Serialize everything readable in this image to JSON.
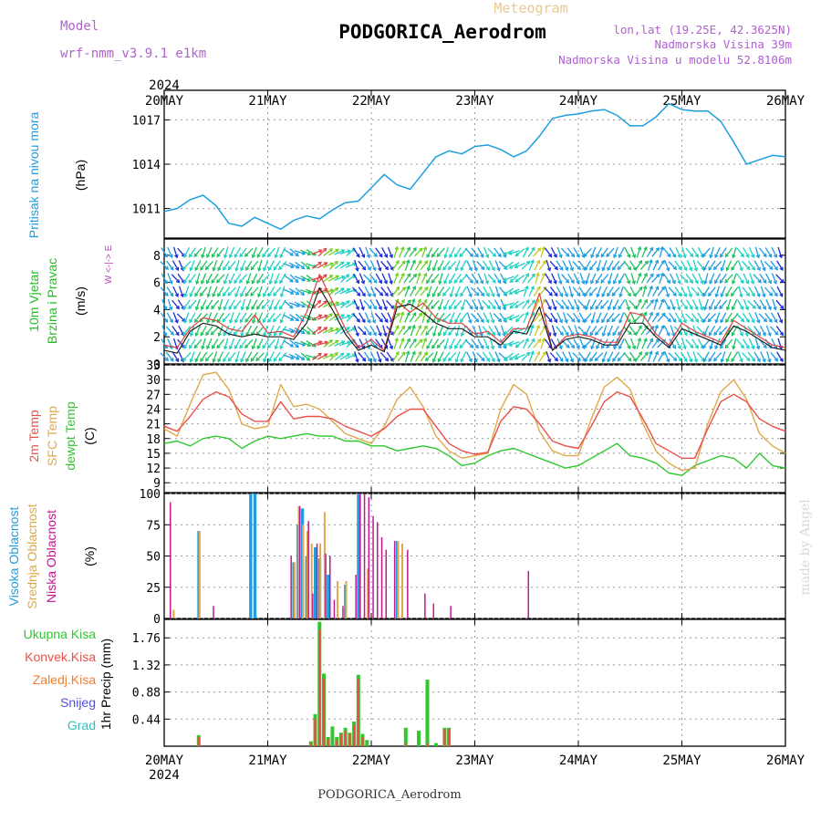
{
  "header": {
    "model_label": "Model",
    "model_name": "wrf-nmm_v3.9.1 e1km",
    "meteogram_label": "Meteogram",
    "station": "PODGORICA_Aerodrom",
    "lonlat": "lon,lat (19.25E, 42.3625N)",
    "elev": "Nadmorska Visina 39m",
    "elev_model": "Nadmorska Visina u modelu 52.8106m",
    "footer_station": "PODGORICA_Aerodrom",
    "watermark": "made by Angel"
  },
  "colors": {
    "pressure": "#1e9ee0",
    "temp2m": "#e8504a",
    "sfc": "#e0a84a",
    "dew": "#2ec82e",
    "high": "#1e9ee0",
    "mid": "#e0a84a",
    "low": "#c01890",
    "ukupna": "#2ec82e",
    "konvek": "#e8504a",
    "zaledj": "#f08030",
    "snijeg": "#5050e0",
    "grad": "#30c0c0",
    "windLabel": "#20c020",
    "windDir": "#c040c0"
  },
  "chart_data": [
    {
      "type": "line",
      "panel": "pressure",
      "ylabel": "Pritisak na nivou mora",
      "unit": "(hPa)",
      "yticks": [
        "1011",
        "1014",
        "1017"
      ],
      "ylim": [
        1009,
        1019
      ],
      "xlim": [
        0,
        144
      ],
      "x_start": "2024-05-20 00:00",
      "x_step_hours": 3,
      "series": [
        {
          "values": [
            1010.8,
            1011.0,
            1011.6,
            1011.9,
            1011.2,
            1010.0,
            1009.8,
            1010.4,
            1010.0,
            1009.6,
            1010.2,
            1010.5,
            1010.3,
            1010.9,
            1011.4,
            1011.5,
            1012.4,
            1013.3,
            1012.6,
            1012.3,
            1013.4,
            1014.5,
            1014.9,
            1014.7,
            1015.2,
            1015.3,
            1015.0,
            1014.5,
            1014.9,
            1015.9,
            1017.1,
            1017.3,
            1017.4,
            1017.6,
            1017.7,
            1017.3,
            1016.6,
            1016.6,
            1017.2,
            1018.1,
            1017.7,
            1017.6,
            1017.6,
            1016.9,
            1015.5,
            1014.0,
            1014.3,
            1014.6,
            1014.5
          ]
        }
      ]
    },
    {
      "type": "line",
      "panel": "wind",
      "ylabel": [
        "10m Vjetar",
        "Brzina i Pravac"
      ],
      "unit": "(m/s)",
      "direction_key": "W <-|-> E",
      "yticks": [
        "0",
        "2",
        "4",
        "6",
        "8"
      ],
      "ylim": [
        0,
        9.2
      ],
      "xlim": [
        0,
        144
      ],
      "x_start": "2024-05-20 00:00",
      "x_step_hours": 3,
      "series": [
        {
          "values": [
            1.4,
            1.2,
            2.6,
            3.4,
            3.2,
            2.6,
            2.4,
            3.6,
            2.3,
            2.4,
            2.0,
            3.8,
            6.6,
            4.6,
            2.6,
            1.2,
            1.8,
            1.0,
            4.6,
            3.8,
            4.5,
            3.4,
            3.0,
            3.0,
            2.2,
            2.4,
            1.6,
            2.6,
            2.6,
            5.2,
            1.0,
            2.0,
            2.2,
            2.0,
            1.6,
            1.6,
            3.8,
            3.6,
            2.2,
            1.4,
            3.0,
            2.4,
            2.0,
            1.6,
            3.2,
            2.6,
            2.0,
            1.4,
            1.2
          ]
        },
        {
          "values": [
            1.0,
            0.8,
            2.4,
            3.0,
            2.8,
            2.2,
            2.0,
            2.2,
            2.0,
            2.0,
            1.8,
            3.0,
            5.6,
            4.0,
            2.2,
            1.0,
            1.4,
            0.9,
            4.2,
            4.4,
            3.8,
            3.0,
            2.6,
            2.6,
            2.0,
            2.0,
            1.4,
            2.4,
            2.2,
            4.2,
            1.0,
            1.8,
            2.0,
            1.8,
            1.4,
            1.4,
            3.0,
            3.0,
            2.0,
            1.2,
            2.6,
            2.2,
            1.8,
            1.4,
            2.8,
            2.4,
            1.8,
            1.2,
            1.0
          ]
        }
      ],
      "direction_values": [
        4,
        4,
        3,
        3,
        3,
        3,
        3,
        3,
        3,
        3,
        5,
        5,
        6,
        6,
        6,
        4,
        4,
        4,
        7,
        7,
        7,
        3,
        3,
        3,
        4,
        4,
        4,
        2,
        7,
        7,
        4,
        4,
        4,
        3,
        3,
        3,
        4,
        7,
        7,
        4,
        4,
        4,
        3,
        3,
        3,
        4,
        4,
        4,
        4
      ],
      "arrow_colors": [
        "#7a1fd6",
        "#1c2cd8",
        "#1e9ee0",
        "#20d0c0",
        "#20c060",
        "#70d020",
        "#c8c820",
        "#e04040"
      ]
    },
    {
      "type": "line",
      "panel": "temperature",
      "ylabel": [
        "2m Temp",
        "SFC Temp",
        "dewpt Temp"
      ],
      "unit": "(C)",
      "yticks": [
        "9",
        "12",
        "15",
        "18",
        "21",
        "24",
        "27",
        "30",
        "33"
      ],
      "ylim": [
        7,
        33
      ],
      "xlim": [
        0,
        144
      ],
      "x_start": "2024-05-20 00:00",
      "x_step_hours": 3,
      "series": [
        {
          "name": "2m Temp",
          "values": [
            20.5,
            19.5,
            22.5,
            26.0,
            27.5,
            26.5,
            23.0,
            21.5,
            21.5,
            25.5,
            22.0,
            22.5,
            22.5,
            22.0,
            20.5,
            19.5,
            18.5,
            20.0,
            22.5,
            24.0,
            24.0,
            20.5,
            17.0,
            15.5,
            14.8,
            15.2,
            21.5,
            24.5,
            24.0,
            21.0,
            17.5,
            16.5,
            16.0,
            20.5,
            25.5,
            27.5,
            26.5,
            22.0,
            17.0,
            15.5,
            14.0,
            14.0,
            20.0,
            25.5,
            27.0,
            25.5,
            22.0,
            20.5,
            19.5
          ]
        },
        {
          "name": "SFC Temp",
          "values": [
            20.0,
            18.5,
            25.0,
            31.0,
            31.5,
            28.0,
            21.0,
            20.0,
            20.5,
            29.0,
            24.5,
            25.0,
            24.0,
            21.5,
            19.0,
            18.0,
            17.0,
            20.5,
            26.0,
            28.5,
            24.5,
            18.5,
            15.5,
            14.0,
            14.5,
            15.0,
            24.0,
            29.0,
            27.0,
            19.5,
            15.5,
            14.5,
            14.5,
            22.0,
            28.5,
            30.5,
            28.0,
            21.0,
            15.5,
            13.0,
            11.5,
            12.0,
            21.0,
            27.5,
            30.0,
            26.0,
            19.0,
            16.5,
            15.0
          ]
        },
        {
          "name": "dewpt Temp",
          "values": [
            17.0,
            17.5,
            16.5,
            18.0,
            18.5,
            18.0,
            16.0,
            17.5,
            18.5,
            18.0,
            18.5,
            19.0,
            18.5,
            18.5,
            17.5,
            17.5,
            16.5,
            16.5,
            15.5,
            16.0,
            16.5,
            16.0,
            14.5,
            12.5,
            13.0,
            14.5,
            15.5,
            16.0,
            15.0,
            14.0,
            13.0,
            12.0,
            12.5,
            14.0,
            15.5,
            17.0,
            14.5,
            14.0,
            13.0,
            11.0,
            10.5,
            12.5,
            13.5,
            14.5,
            14.0,
            12.0,
            15.0,
            12.5,
            12.0
          ]
        }
      ]
    },
    {
      "type": "bar",
      "panel": "cloud",
      "ylabel": [
        "Visoka Oblacnost",
        "Srednja Oblacnost",
        "Niska Oblacnost"
      ],
      "unit": "(%)",
      "yticks": [
        "0",
        "25",
        "50",
        "75",
        "100"
      ],
      "ylim": [
        0,
        100
      ],
      "xlim": [
        0,
        144
      ],
      "x_start": "2024-05-20 00:00",
      "x_step_hours": 1,
      "series": [
        {
          "name": "Visoka Oblacnost",
          "bars": [
            [
              8,
              70
            ],
            [
              20,
              100
            ],
            [
              21,
              100
            ],
            [
              30,
              45
            ],
            [
              31,
              75
            ],
            [
              32,
              88
            ],
            [
              33,
              50
            ],
            [
              35,
              57
            ],
            [
              36,
              48
            ],
            [
              38,
              35
            ],
            [
              42,
              27
            ],
            [
              45,
              100
            ],
            [
              54,
              62
            ]
          ]
        },
        {
          "name": "Srednja Oblacnost",
          "bars": [
            [
              2,
              7
            ],
            [
              8,
              70
            ],
            [
              30,
              45
            ],
            [
              31,
              90
            ],
            [
              32,
              75
            ],
            [
              33,
              70
            ],
            [
              34,
              60
            ],
            [
              36,
              60
            ],
            [
              37,
              85
            ],
            [
              40,
              30
            ],
            [
              42,
              30
            ],
            [
              47,
              40
            ],
            [
              54,
              62
            ],
            [
              55,
              60
            ]
          ]
        },
        {
          "name": "Niska Oblacnost",
          "bars": [
            [
              1,
              93
            ],
            [
              11,
              10
            ],
            [
              29,
              50
            ],
            [
              31,
              90
            ],
            [
              33,
              78
            ],
            [
              34,
              20
            ],
            [
              35,
              60
            ],
            [
              37,
              52
            ],
            [
              38,
              50
            ],
            [
              39,
              15
            ],
            [
              41,
              10
            ],
            [
              44,
              35
            ],
            [
              45,
              100
            ],
            [
              46,
              100
            ],
            [
              47,
              97
            ],
            [
              48,
              82
            ],
            [
              49,
              77
            ],
            [
              50,
              65
            ],
            [
              51,
              55
            ],
            [
              53,
              62
            ],
            [
              56,
              55
            ],
            [
              60,
              20
            ],
            [
              62,
              12
            ],
            [
              66,
              10
            ],
            [
              84,
              38
            ]
          ]
        }
      ]
    },
    {
      "type": "bar",
      "panel": "precip",
      "ylabel": "1hr Precip (mm)",
      "legend": [
        "Ukupna Kisa",
        "Konvek.Kisa",
        "Zaledj.Kisa",
        "Snijeg",
        "Grad"
      ],
      "yticks": [
        "0.44",
        "0.88",
        "1.32",
        "1.76"
      ],
      "ylim": [
        0,
        2.06
      ],
      "xlim": [
        0,
        144
      ],
      "x_start": "2024-05-20 00:00",
      "x_step_hours": 1,
      "series": [
        {
          "name": "Ukupna Kisa",
          "bars": [
            [
              8,
              0.18
            ],
            [
              34,
              0.08
            ],
            [
              35,
              0.52
            ],
            [
              36,
              2.02
            ],
            [
              37,
              1.18
            ],
            [
              38,
              0.15
            ],
            [
              39,
              0.32
            ],
            [
              40,
              0.15
            ],
            [
              41,
              0.22
            ],
            [
              42,
              0.3
            ],
            [
              43,
              0.22
            ],
            [
              44,
              0.4
            ],
            [
              45,
              1.16
            ],
            [
              46,
              0.2
            ],
            [
              47,
              0.1
            ],
            [
              56,
              0.3
            ],
            [
              59,
              0.25
            ],
            [
              61,
              1.08
            ],
            [
              63,
              0.05
            ],
            [
              65,
              0.3
            ],
            [
              66,
              0.3
            ]
          ]
        },
        {
          "name": "Konvek.Kisa",
          "bars": [
            [
              8,
              0.15
            ],
            [
              34,
              0.05
            ],
            [
              35,
              0.45
            ],
            [
              36,
              1.9
            ],
            [
              37,
              1.1
            ],
            [
              38,
              0.12
            ],
            [
              40,
              0.1
            ],
            [
              41,
              0.2
            ],
            [
              42,
              0.25
            ],
            [
              43,
              0.2
            ],
            [
              44,
              0.35
            ],
            [
              45,
              1.1
            ],
            [
              46,
              0.15
            ],
            [
              56,
              0.05
            ],
            [
              61,
              0.05
            ],
            [
              65,
              0.28
            ],
            [
              66,
              0.28
            ]
          ]
        }
      ]
    }
  ],
  "axis": {
    "year": "2024",
    "days": [
      "20MAY",
      "21MAY",
      "22MAY",
      "23MAY",
      "24MAY",
      "25MAY",
      "26MAY"
    ]
  }
}
